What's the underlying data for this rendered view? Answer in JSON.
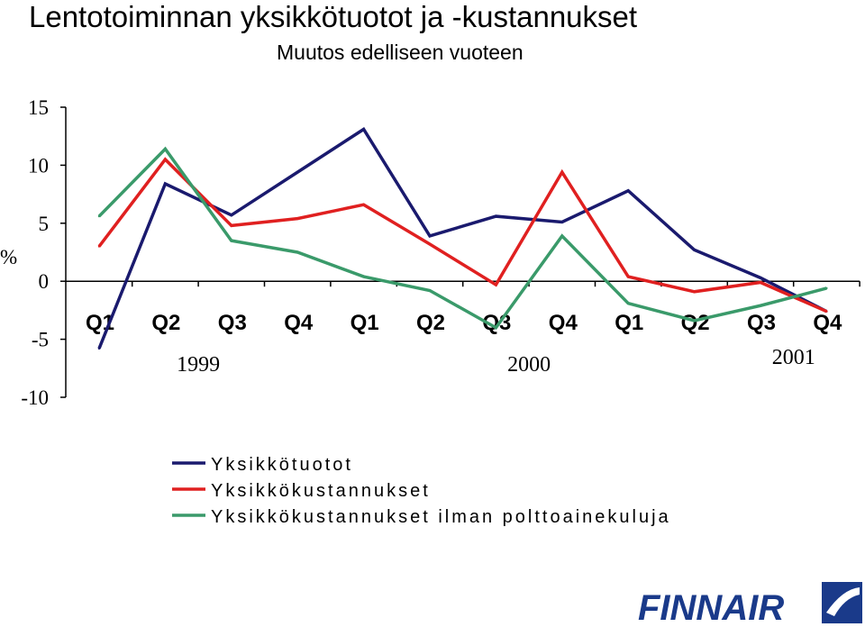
{
  "chart_data": {
    "type": "line",
    "title": "Lentotoiminnan yksikkötuotot ja -kustannukset",
    "subtitle": "Muutos edelliseen vuoteen",
    "ylabel": "%",
    "ylim": [
      -10,
      15
    ],
    "yticks": [
      15,
      10,
      5,
      0,
      -5,
      -10
    ],
    "categories": [
      "Q1",
      "Q2",
      "Q3",
      "Q4",
      "Q1",
      "Q2",
      "Q3",
      "Q4",
      "Q1",
      "Q2",
      "Q3",
      "Q4"
    ],
    "years": [
      {
        "label": "1999",
        "center_index": 1.5
      },
      {
        "label": "2000",
        "center_index": 6.5
      },
      {
        "label": "2001",
        "center_index": 10.5
      }
    ],
    "grid": false,
    "legend_position": "bottom",
    "series": [
      {
        "name": "Yksikkötuotot",
        "color": "#1a1a6e",
        "values": [
          -5.8,
          8.4,
          5.7,
          9.4,
          13.1,
          3.9,
          5.6,
          5.1,
          7.8,
          2.7,
          0.3,
          -2.6
        ]
      },
      {
        "name": "Yksikkökustannukset",
        "color": "#e02020",
        "values": [
          3.0,
          10.5,
          4.8,
          5.4,
          6.6,
          3.2,
          -0.3,
          9.4,
          0.4,
          -0.9,
          -0.1,
          -2.6
        ]
      },
      {
        "name": "Yksikkökustannukset ilman polttoainekuluja",
        "color": "#3a9a6a",
        "values": [
          5.6,
          11.4,
          3.5,
          2.5,
          0.4,
          -0.8,
          -4.0,
          3.9,
          -1.9,
          -3.4,
          -2.1,
          -0.6
        ]
      }
    ]
  },
  "logo": {
    "text": "FINNAIR",
    "color": "#1a3a8a"
  }
}
